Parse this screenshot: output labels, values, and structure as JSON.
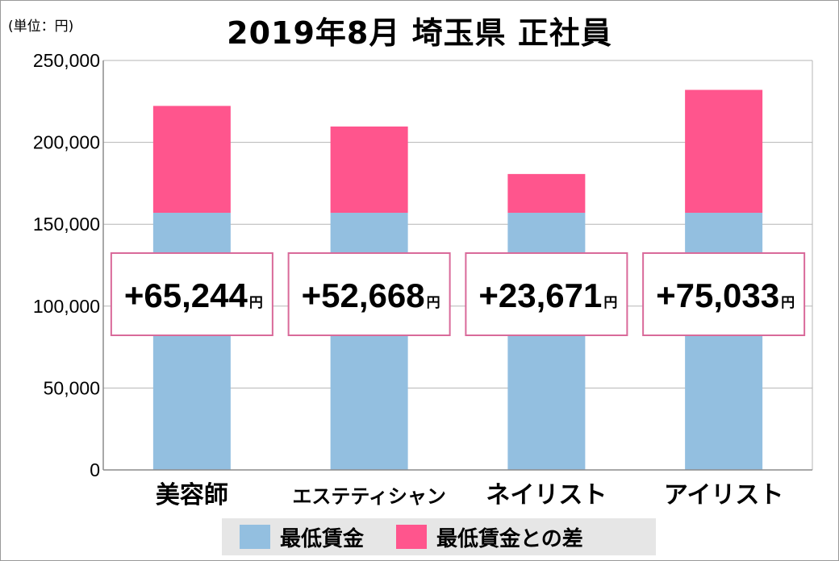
{
  "unit_label": "(単位：円)",
  "chart_data": {
    "type": "bar",
    "stacked": true,
    "title": "2019年8月 埼玉県 正社員",
    "categories": [
      "美容師",
      "エステティシャン",
      "ネイリスト",
      "アイリスト"
    ],
    "series": [
      {
        "name": "最低賃金",
        "color": "#93bfe0",
        "values": [
          157000,
          157000,
          157000,
          157000
        ]
      },
      {
        "name": "最低賃金との差",
        "color": "#ff558d",
        "values": [
          65244,
          52668,
          23671,
          75033
        ]
      }
    ],
    "ylim": [
      0,
      250000
    ],
    "y_ticks": [
      0,
      50000,
      100000,
      150000,
      200000,
      250000
    ],
    "y_tick_labels": [
      "0",
      "50,000",
      "100,000",
      "150,000",
      "200,000",
      "250,000"
    ],
    "grid": true,
    "legend_position": "bottom",
    "difference_labels": [
      "+65,244",
      "+52,668",
      "+23,671",
      "+75,033"
    ],
    "difference_unit": "円"
  }
}
